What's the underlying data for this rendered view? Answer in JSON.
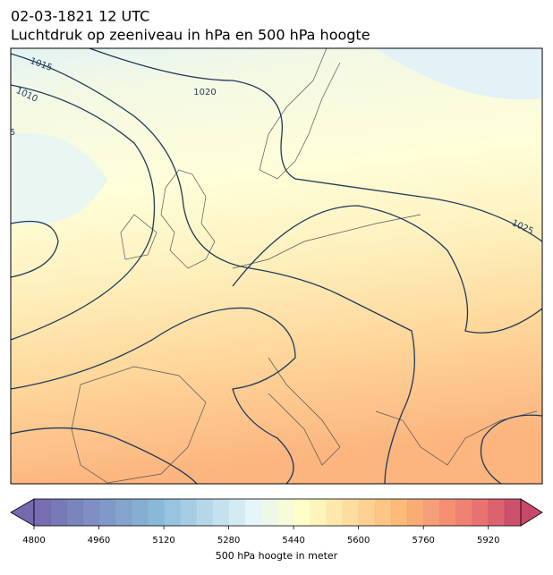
{
  "title": "02-03-1821 12 UTC",
  "subtitle": "Luchtdruk op zeeniveau in hPa en 500 hPa hoogte",
  "isobar_labels": [
    1015,
    1010,
    1020,
    1025,
    5
  ],
  "colorbar": {
    "lim": [
      4800,
      6000
    ],
    "ticks": [
      4800,
      4960,
      5120,
      5280,
      5440,
      5600,
      5760,
      5920
    ],
    "label": "500 hPa hoogte in meter"
  }
}
